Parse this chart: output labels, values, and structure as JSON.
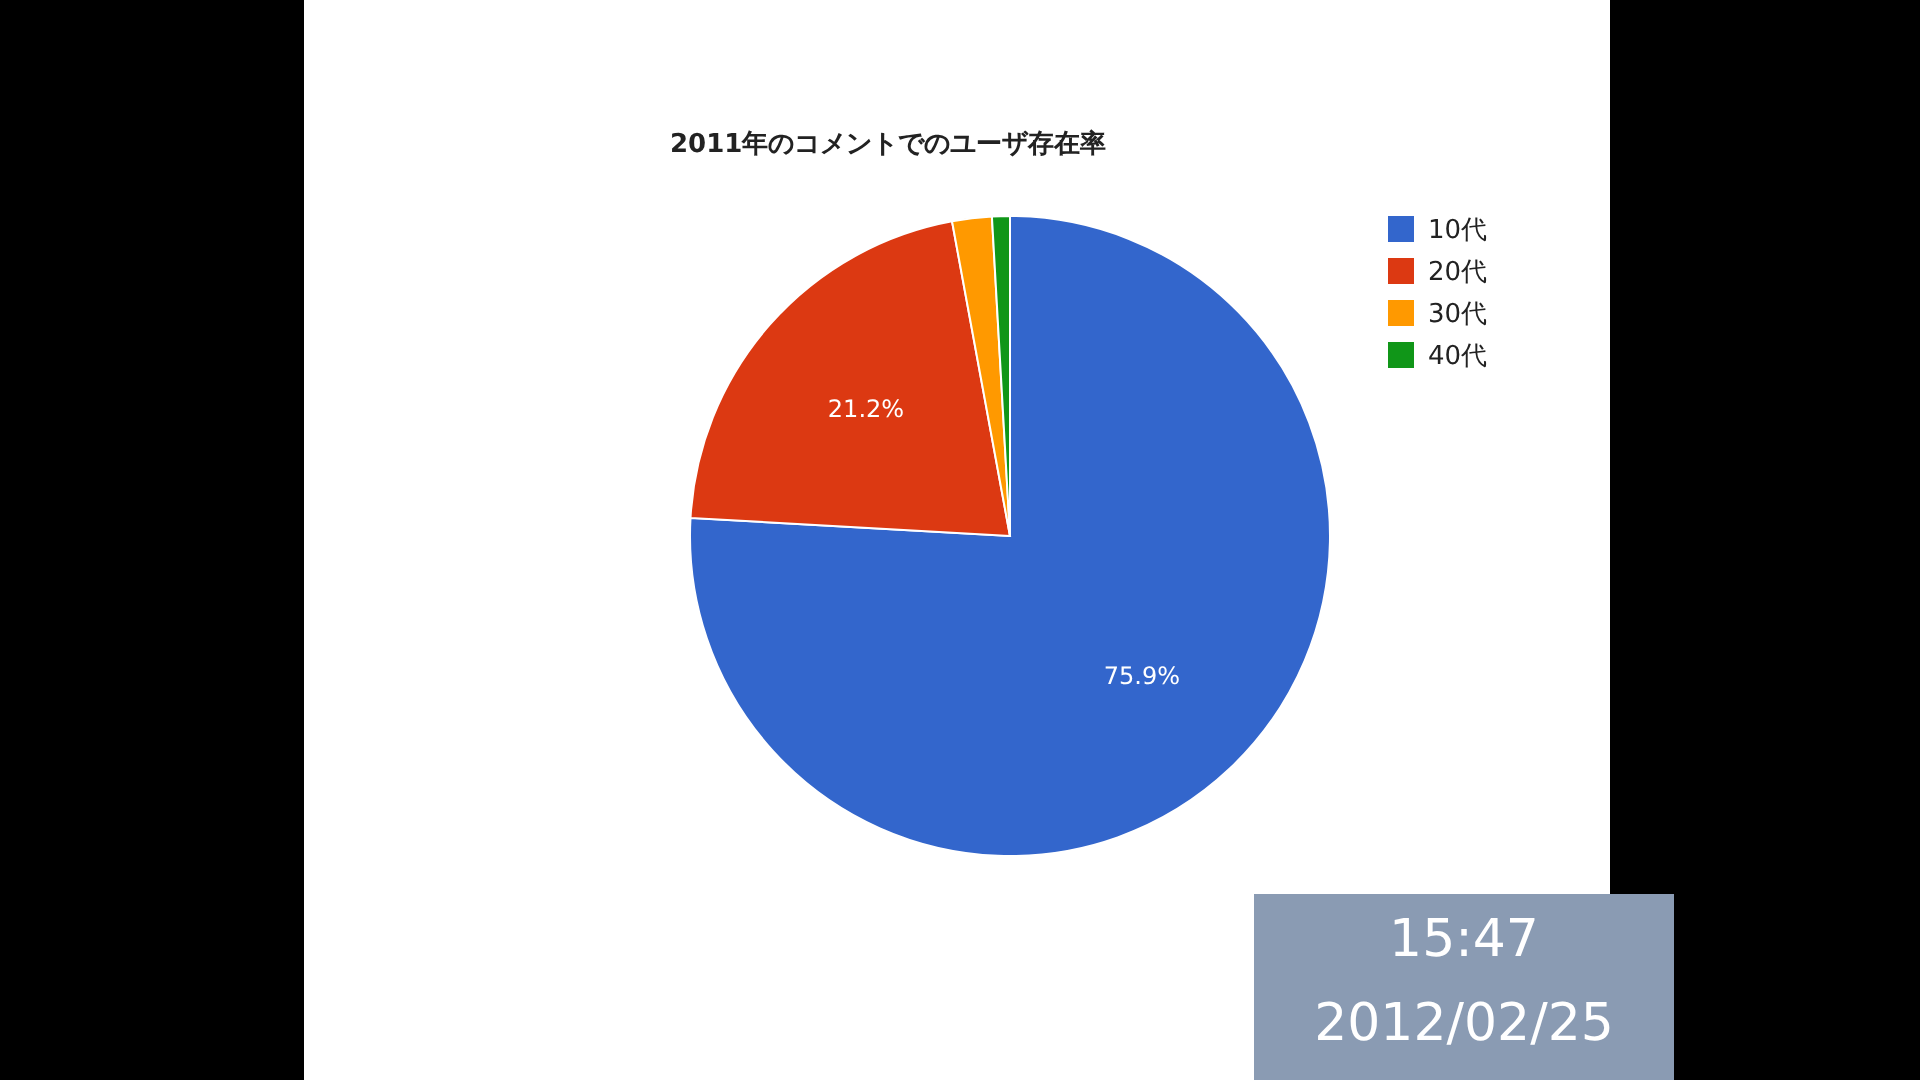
{
  "chart_data": {
    "type": "pie",
    "title": "2011年のコメントでのユーザ存在率",
    "categories": [
      "10代",
      "20代",
      "30代",
      "40代"
    ],
    "values": [
      75.9,
      21.2,
      2.0,
      0.9
    ],
    "colors": [
      "#3366cc",
      "#dc3912",
      "#ff9900",
      "#109618"
    ],
    "value_labels": [
      "75.9%",
      "21.2%",
      null,
      null
    ],
    "legend": "right",
    "annotations": [
      "15:47",
      "2012/02/25"
    ]
  }
}
